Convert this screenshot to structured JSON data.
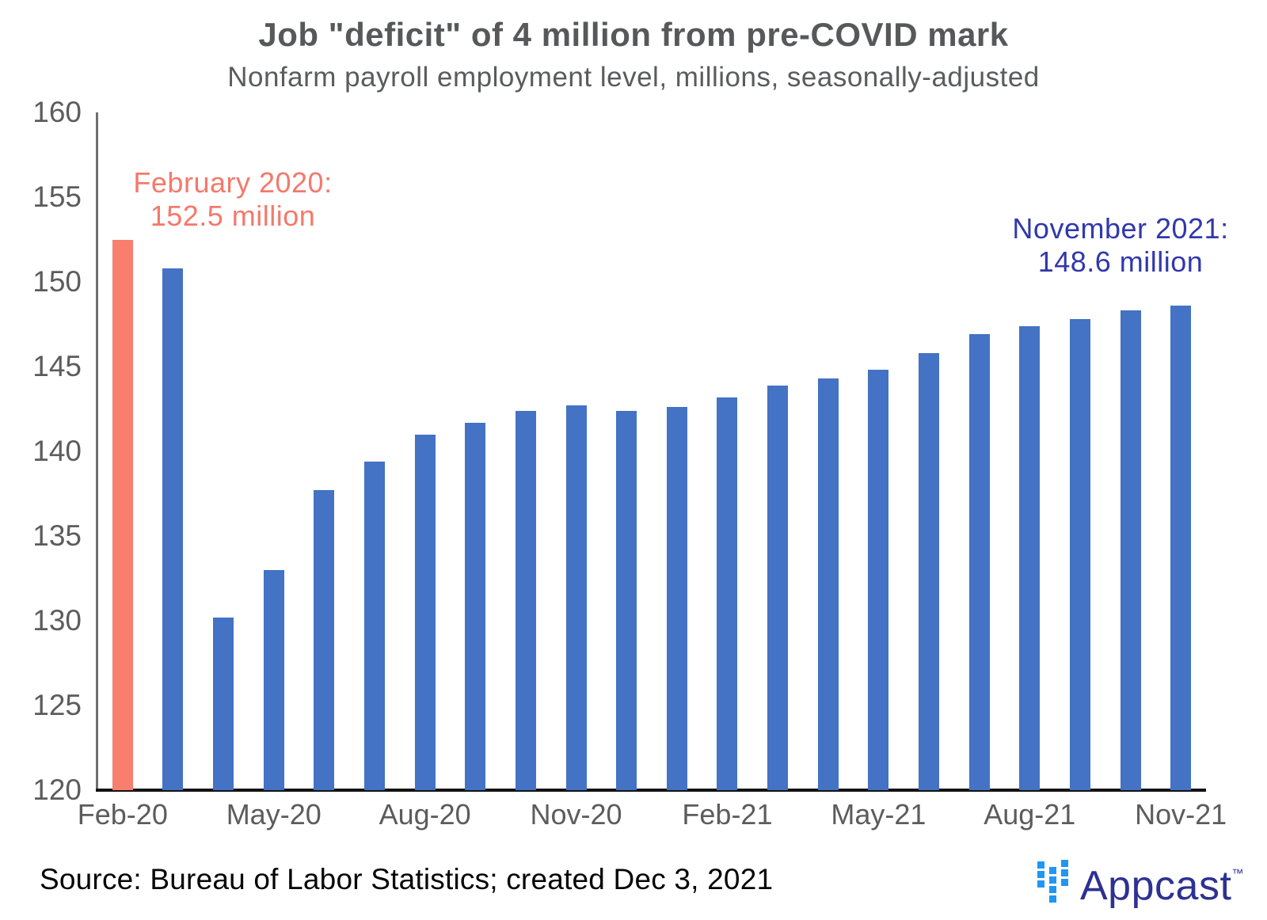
{
  "chart_data": {
    "type": "bar",
    "title": "Job \"deficit\" of 4 million from pre-COVID mark",
    "subtitle": "Nonfarm payroll employment level, millions, seasonally-adjusted",
    "xlabel": "",
    "ylabel": "",
    "categories": [
      "Feb-20",
      "Mar-20",
      "Apr-20",
      "May-20",
      "Jun-20",
      "Jul-20",
      "Aug-20",
      "Sep-20",
      "Oct-20",
      "Nov-20",
      "Dec-20",
      "Jan-21",
      "Feb-21",
      "Mar-21",
      "Apr-21",
      "May-21",
      "Jun-21",
      "Jul-21",
      "Aug-21",
      "Sep-21",
      "Oct-21",
      "Nov-21"
    ],
    "values": [
      152.5,
      150.8,
      130.2,
      133.0,
      137.7,
      139.4,
      141.0,
      141.7,
      142.4,
      142.7,
      142.4,
      142.6,
      143.2,
      143.9,
      144.3,
      144.8,
      145.8,
      146.9,
      147.4,
      147.8,
      148.3,
      148.6
    ],
    "x_tick_labels": [
      "Feb-20",
      "May-20",
      "Aug-20",
      "Nov-20",
      "Feb-21",
      "May-21",
      "Aug-21",
      "Nov-21"
    ],
    "x_tick_indices": [
      0,
      3,
      6,
      9,
      12,
      15,
      18,
      21
    ],
    "y_ticks": [
      120,
      125,
      130,
      135,
      140,
      145,
      150,
      155,
      160
    ],
    "ylim": [
      120,
      160
    ],
    "grid": false,
    "legend": false,
    "bar_color": "#4472c4",
    "highlight_index": 0,
    "highlight_color": "#f87e6e",
    "annotations": {
      "highlight": {
        "line1": "February 2020:",
        "line2": "152.5 million",
        "color": "#f4796b"
      },
      "latest": {
        "line1": "November 2021:",
        "line2": "148.6 million",
        "color": "#3138ab"
      }
    }
  },
  "footer": {
    "source": "Source: Bureau of Labor Statistics; created Dec 3, 2021"
  },
  "logo": {
    "text": "Appcast",
    "tm": "™",
    "icon_color": "#2196f3",
    "text_color": "#2e3192"
  }
}
